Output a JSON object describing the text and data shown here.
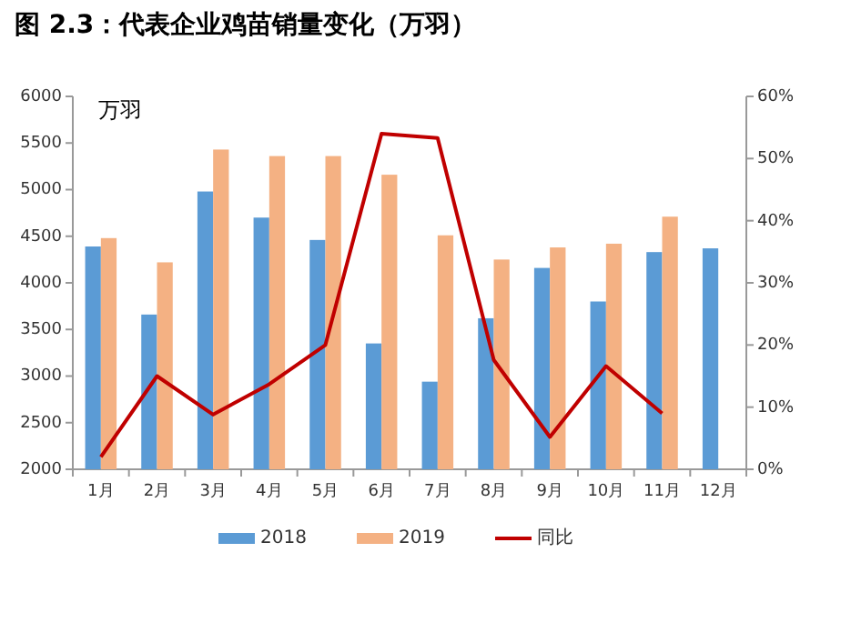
{
  "chart_data": {
    "type": "bar",
    "title": "图 2.3：代表企业鸡苗销量变化（万羽）",
    "ylabel": "万羽",
    "categories": [
      "1月",
      "2月",
      "3月",
      "4月",
      "5月",
      "6月",
      "7月",
      "8月",
      "9月",
      "10月",
      "11月",
      "12月"
    ],
    "series": [
      {
        "name": "2018",
        "color": "#5b9bd5",
        "values": [
          4390,
          3660,
          4980,
          4700,
          4460,
          3350,
          2940,
          3620,
          4160,
          3800,
          4330,
          4370
        ]
      },
      {
        "name": "2019",
        "color": "#f4b183",
        "values": [
          4480,
          4220,
          5430,
          5360,
          5360,
          5160,
          4510,
          4250,
          4380,
          4420,
          4710,
          null
        ]
      },
      {
        "name": "同比",
        "type": "line",
        "axis": "y2",
        "color": "#c00000",
        "values": [
          2,
          15,
          8.8,
          13.7,
          20,
          54,
          53.3,
          17.6,
          5.2,
          16.6,
          9,
          null
        ]
      }
    ],
    "ylim": [
      2000,
      6000
    ],
    "yticks": [
      2000,
      2500,
      3000,
      3500,
      4000,
      4500,
      5000,
      5500,
      6000
    ],
    "y2lim": [
      0,
      60
    ],
    "y2ticks": [
      {
        "value": 0,
        "label": "0%"
      },
      {
        "value": 10,
        "label": "10%"
      },
      {
        "value": 20,
        "label": "20%"
      },
      {
        "value": 30,
        "label": "30%"
      },
      {
        "value": 40,
        "label": "40%"
      },
      {
        "value": 50,
        "label": "50%"
      },
      {
        "value": 60,
        "label": "60%"
      }
    ],
    "grid": false,
    "legend": "bottom",
    "marker": "none"
  }
}
